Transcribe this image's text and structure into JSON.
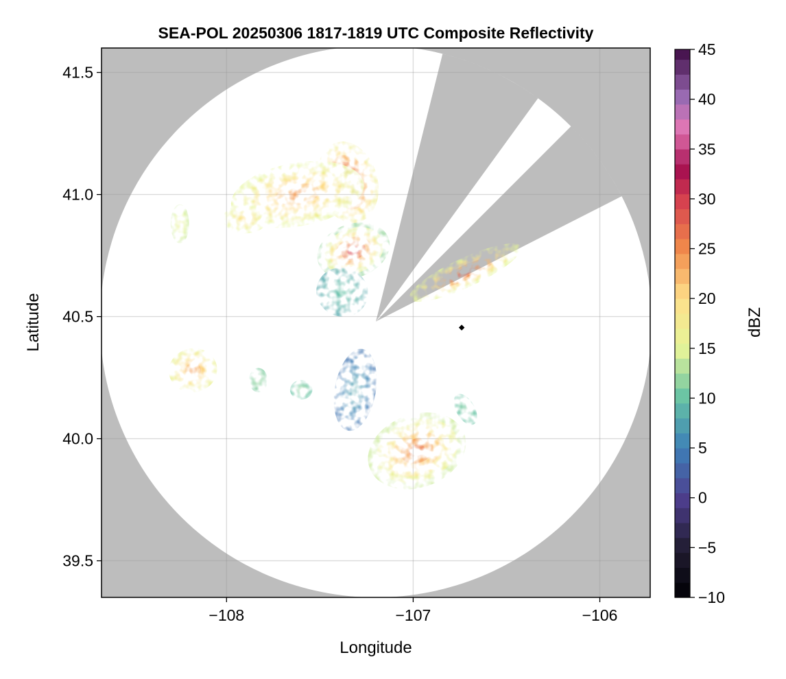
{
  "chart_data": {
    "type": "heatmap",
    "title": "SEA-POL 20250306 1817-1819 UTC Composite Reflectivity",
    "xlabel": "Longitude",
    "ylabel": "Latitude",
    "xlim": [
      -108.67,
      -105.73
    ],
    "ylim": [
      39.35,
      41.6
    ],
    "xticks": [
      -108,
      -107,
      -106
    ],
    "xtick_labels": [
      "−108",
      "−107",
      "−106"
    ],
    "yticks": [
      39.5,
      40.0,
      40.5,
      41.0,
      41.5
    ],
    "ytick_labels": [
      "39.5",
      "40.0",
      "40.5",
      "41.0",
      "41.5"
    ],
    "grid": true,
    "no_coverage_color": "#bdbdbd",
    "radar_site": {
      "lon": -107.2,
      "lat": 40.48
    },
    "radar_range_deg_lat": 1.13,
    "blocked_sectors_azimuth_deg": [
      [
        14,
        36
      ],
      [
        45,
        63
      ]
    ],
    "marker": {
      "lon": -106.74,
      "lat": 40.455,
      "color": "#000000"
    },
    "colorbar": {
      "label": "dBZ",
      "min": -10,
      "max": 45,
      "step": 1.5,
      "ticks": [
        -10,
        -5,
        0,
        5,
        10,
        15,
        20,
        25,
        30,
        35,
        40,
        45
      ],
      "tick_labels": [
        "−10",
        "−5",
        "0",
        "5",
        "10",
        "15",
        "20",
        "25",
        "30",
        "35",
        "40",
        "45"
      ],
      "color_stops": [
        [
          -10,
          "#000004"
        ],
        [
          -5,
          "#221d33"
        ],
        [
          0,
          "#4e3f8f"
        ],
        [
          5,
          "#3d80b8"
        ],
        [
          10,
          "#66c2a5"
        ],
        [
          15,
          "#e6f598"
        ],
        [
          20,
          "#fee08b"
        ],
        [
          25,
          "#f08a4b"
        ],
        [
          30,
          "#d53e4f"
        ],
        [
          33,
          "#a50f50"
        ],
        [
          37,
          "#e377b4"
        ],
        [
          40,
          "#9e6fb8"
        ],
        [
          45,
          "#3f0c45"
        ]
      ]
    },
    "echo_cells": [
      {
        "lon": -107.35,
        "lat": 41.05,
        "rx": 0.16,
        "ry": 0.17,
        "rot": -15,
        "peak": 31,
        "edge": 17,
        "id": "north-core"
      },
      {
        "lon": -107.62,
        "lat": 41.0,
        "rx": 0.36,
        "ry": 0.13,
        "rot": -10,
        "peak": 24,
        "edge": 15,
        "id": "north-band"
      },
      {
        "lon": -107.9,
        "lat": 40.9,
        "rx": 0.12,
        "ry": 0.06,
        "rot": 0,
        "peak": 20,
        "edge": 15,
        "id": "north-west-fringe"
      },
      {
        "lon": -107.32,
        "lat": 40.77,
        "rx": 0.2,
        "ry": 0.11,
        "rot": -20,
        "peak": 30,
        "edge": 12,
        "id": "center-north-core"
      },
      {
        "lon": -107.38,
        "lat": 40.6,
        "rx": 0.14,
        "ry": 0.1,
        "rot": 20,
        "peak": 10,
        "edge": 8,
        "id": "center-north-low"
      },
      {
        "lon": -106.72,
        "lat": 40.68,
        "rx": 0.33,
        "ry": 0.06,
        "rot": -25,
        "peak": 28,
        "edge": 15,
        "id": "east-band"
      },
      {
        "lon": -108.18,
        "lat": 40.28,
        "rx": 0.13,
        "ry": 0.09,
        "rot": -10,
        "peak": 24,
        "edge": 16,
        "id": "west-cell"
      },
      {
        "lon": -108.25,
        "lat": 40.88,
        "rx": 0.05,
        "ry": 0.08,
        "rot": 0,
        "peak": 16,
        "edge": 14,
        "id": "west-small"
      },
      {
        "lon": -107.31,
        "lat": 40.2,
        "rx": 0.11,
        "ry": 0.17,
        "rot": 10,
        "peak": 8,
        "edge": 4,
        "id": "south-blue-cell"
      },
      {
        "lon": -107.6,
        "lat": 40.2,
        "rx": 0.06,
        "ry": 0.04,
        "rot": 0,
        "peak": 12,
        "edge": 10,
        "id": "south-small-green"
      },
      {
        "lon": -107.83,
        "lat": 40.24,
        "rx": 0.05,
        "ry": 0.05,
        "rot": 0,
        "peak": 12,
        "edge": 11,
        "id": "south-west-green"
      },
      {
        "lon": -106.98,
        "lat": 39.95,
        "rx": 0.27,
        "ry": 0.15,
        "rot": -20,
        "peak": 26,
        "edge": 14,
        "id": "south-east-cell"
      },
      {
        "lon": -106.72,
        "lat": 40.12,
        "rx": 0.05,
        "ry": 0.07,
        "rot": -30,
        "peak": 11,
        "edge": 10,
        "id": "south-east-streak"
      }
    ]
  }
}
